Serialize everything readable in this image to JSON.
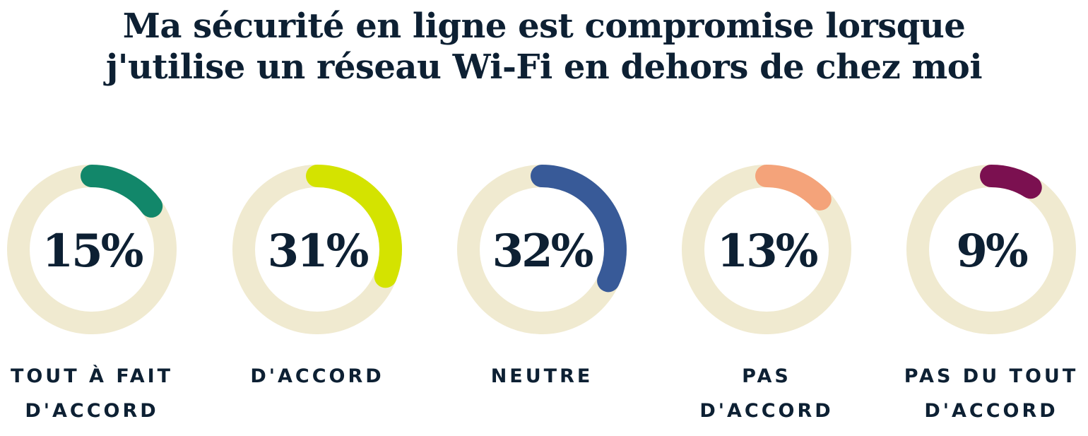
{
  "chart_data": {
    "type": "donut",
    "title": [
      "Ma sécurité en ligne est compromise lorsque",
      "j'utilise un réseau Wi-Fi en dehors de chez moi"
    ],
    "track_color": "#f0ead0",
    "items": [
      {
        "value": 15,
        "text": "15%",
        "label": [
          "TOUT À FAIT",
          "D'ACCORD"
        ],
        "color": "#12876a"
      },
      {
        "value": 31,
        "text": "31%",
        "label": [
          "D'ACCORD"
        ],
        "color": "#d4e300"
      },
      {
        "value": 32,
        "text": "32%",
        "label": [
          "NEUTRE"
        ],
        "color": "#385a98"
      },
      {
        "value": 13,
        "text": "13%",
        "label": [
          "PAS",
          "D'ACCORD"
        ],
        "color": "#f4a37a"
      },
      {
        "value": 9,
        "text": "9%",
        "label": [
          "PAS DU TOUT",
          "D'ACCORD"
        ],
        "color": "#7b1050"
      }
    ]
  }
}
